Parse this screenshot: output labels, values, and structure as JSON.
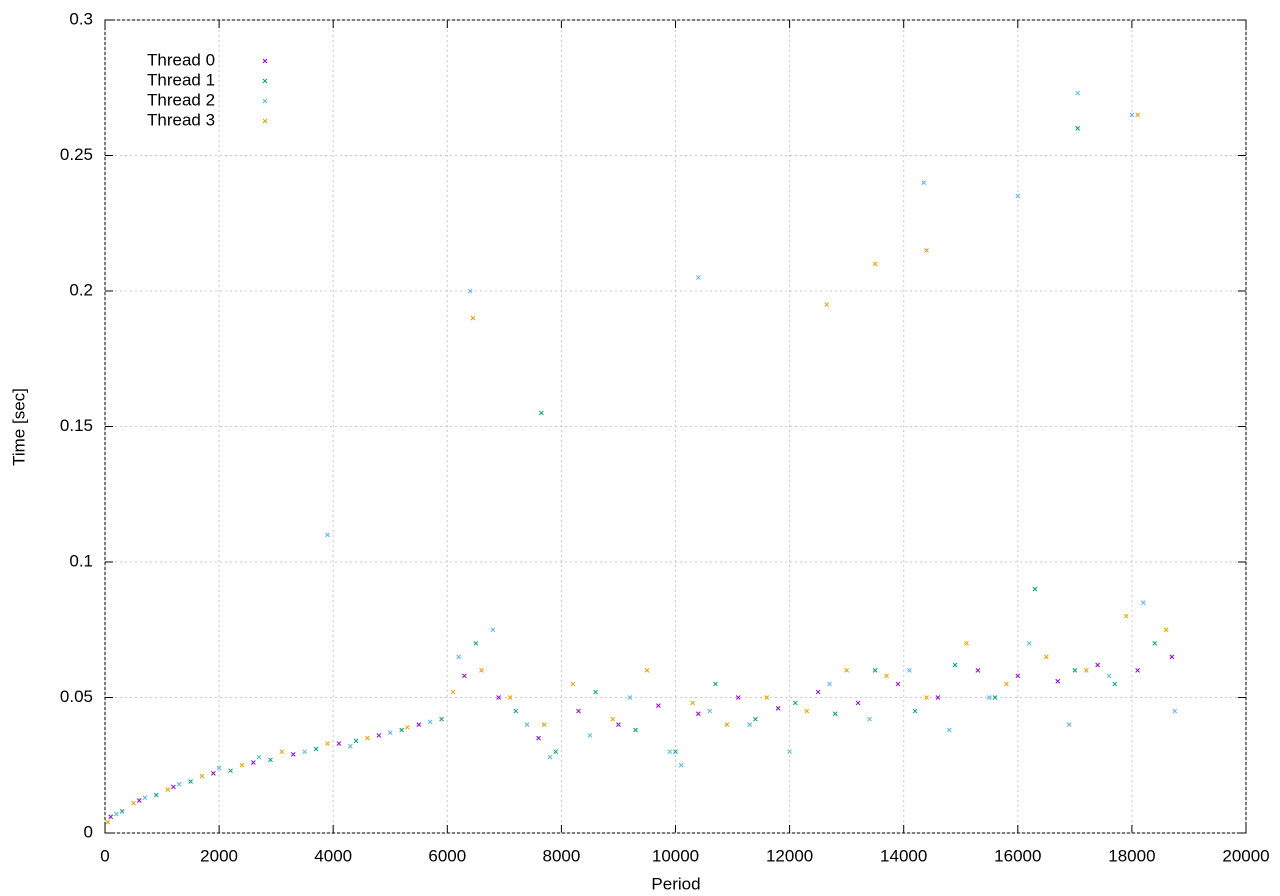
{
  "chart_data": {
    "type": "scatter",
    "xlabel": "Period",
    "ylabel": "Time [sec]",
    "xlim": [
      0,
      20000
    ],
    "ylim": [
      0,
      0.3
    ],
    "xticks": [
      0,
      2000,
      4000,
      6000,
      8000,
      10000,
      12000,
      14000,
      16000,
      18000,
      20000
    ],
    "yticks": [
      0,
      0.05,
      0.1,
      0.15,
      0.2,
      0.25,
      0.3
    ],
    "grid": true,
    "legend": "upper-left",
    "series": [
      {
        "name": "Thread 0",
        "color": "#9400d3",
        "x": [
          100,
          600,
          1200,
          1900,
          2600,
          3300,
          4100,
          4800,
          5500,
          6300,
          6900,
          7600,
          8300,
          9000,
          9700,
          10400,
          11100,
          11800,
          12500,
          13200,
          13900,
          14600,
          15300,
          16000,
          16700,
          17400,
          18100,
          18700
        ],
        "values": [
          0.006,
          0.012,
          0.017,
          0.022,
          0.026,
          0.029,
          0.033,
          0.036,
          0.04,
          0.058,
          0.05,
          0.035,
          0.045,
          0.04,
          0.047,
          0.044,
          0.05,
          0.046,
          0.052,
          0.048,
          0.055,
          0.05,
          0.06,
          0.058,
          0.056,
          0.062,
          0.06,
          0.065
        ]
      },
      {
        "name": "Thread 1",
        "color": "#009e73",
        "x": [
          300,
          900,
          1500,
          2200,
          2900,
          3700,
          4400,
          5200,
          5900,
          6500,
          7200,
          7900,
          8600,
          9300,
          10000,
          10700,
          11400,
          12100,
          12800,
          13500,
          14200,
          14900,
          15600,
          16300,
          17000,
          17700,
          18400,
          7650,
          17050
        ],
        "values": [
          0.008,
          0.014,
          0.019,
          0.023,
          0.027,
          0.031,
          0.034,
          0.038,
          0.042,
          0.07,
          0.045,
          0.03,
          0.052,
          0.038,
          0.03,
          0.055,
          0.042,
          0.048,
          0.044,
          0.06,
          0.045,
          0.062,
          0.05,
          0.09,
          0.06,
          0.055,
          0.07,
          0.155,
          0.26
        ]
      },
      {
        "name": "Thread 2",
        "color": "#56b4e9",
        "x": [
          200,
          700,
          1300,
          2000,
          2700,
          3500,
          4300,
          5000,
          5700,
          6200,
          6800,
          7400,
          7800,
          8500,
          9200,
          9900,
          10100,
          10600,
          11300,
          12000,
          12700,
          13400,
          14100,
          14800,
          15500,
          16200,
          16900,
          17600,
          18200,
          18750,
          10400,
          14350,
          16000,
          17050,
          18000,
          3900,
          6400
        ],
        "values": [
          0.007,
          0.013,
          0.018,
          0.024,
          0.028,
          0.03,
          0.032,
          0.037,
          0.041,
          0.065,
          0.075,
          0.04,
          0.028,
          0.036,
          0.05,
          0.03,
          0.025,
          0.045,
          0.04,
          0.03,
          0.055,
          0.042,
          0.06,
          0.038,
          0.05,
          0.07,
          0.04,
          0.058,
          0.085,
          0.045,
          0.205,
          0.24,
          0.235,
          0.273,
          0.265,
          0.11,
          0.2
        ]
      },
      {
        "name": "Thread 3",
        "color": "#e69f00",
        "x": [
          50,
          500,
          1100,
          1700,
          2400,
          3100,
          3900,
          4600,
          5300,
          6100,
          6600,
          7100,
          7700,
          8200,
          8900,
          9500,
          10300,
          10900,
          11600,
          12300,
          13000,
          13700,
          14400,
          15100,
          15800,
          16500,
          17200,
          17900,
          18600,
          6450,
          12650,
          13500,
          14400,
          18100
        ],
        "values": [
          0.004,
          0.011,
          0.016,
          0.021,
          0.025,
          0.03,
          0.033,
          0.035,
          0.039,
          0.052,
          0.06,
          0.05,
          0.04,
          0.055,
          0.042,
          0.06,
          0.048,
          0.04,
          0.05,
          0.045,
          0.06,
          0.058,
          0.05,
          0.07,
          0.055,
          0.065,
          0.06,
          0.08,
          0.075,
          0.19,
          0.195,
          0.21,
          0.215,
          0.265
        ]
      }
    ]
  }
}
